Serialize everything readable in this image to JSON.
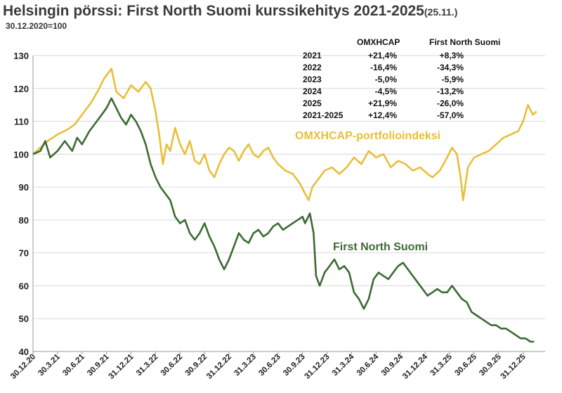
{
  "title": {
    "main": "Helsingin pörssi: First North Suomi kurssikehitys 2021-2025",
    "date": "(25.11.)",
    "subtitle": "30.12.2020=100"
  },
  "colors": {
    "omxhcap": "#E8BF38",
    "first_north": "#3C6A33",
    "grid": "#d9d9d9",
    "axis": "#999999"
  },
  "table": {
    "headers": [
      "OMXHCAP",
      "First North Suomi"
    ],
    "rows": [
      {
        "year": "2021",
        "omxhcap": "+21,4%",
        "fn": "+8,3%"
      },
      {
        "year": "2022",
        "omxhcap": "-16,4%",
        "fn": "-34,3%"
      },
      {
        "year": "2023",
        "omxhcap": "-5,0%",
        "fn": "-5,9%"
      },
      {
        "year": "2024",
        "omxhcap": "-4,5%",
        "fn": "-13,2%"
      },
      {
        "year": "2025",
        "omxhcap": "+21,9%",
        "fn": "-26,0%"
      },
      {
        "year": "2021-2025",
        "omxhcap": "+12,4%",
        "fn": "-57,0%"
      }
    ]
  },
  "chart_data": {
    "type": "line",
    "ylim": [
      40,
      130
    ],
    "yticks": [
      40,
      50,
      60,
      70,
      80,
      90,
      100,
      110,
      120,
      130
    ],
    "xlim": [
      0,
      20.9
    ],
    "xtick_labels": [
      "30.12.20",
      "30.3.21",
      "30.6.21",
      "30.9.21",
      "31.12.21",
      "31.3.22",
      "30.6.22",
      "30.9.22",
      "31.12.22",
      "31.3.23",
      "30.6.23",
      "30.9.23",
      "31.12.23",
      "31.3.24",
      "30.6.24",
      "30.9.24",
      "31.12.24",
      "31.3.25",
      "30.6.25",
      "30.9.25",
      "31.12.25"
    ],
    "x_unit": "quarters since 30.12.2020",
    "grid": "horizontal",
    "series": [
      {
        "name": "OMXHCAP-portfolioindeksi",
        "label_position": "upper-right",
        "points": [
          [
            0,
            100
          ],
          [
            0.3,
            102
          ],
          [
            0.6,
            104
          ],
          [
            1,
            106
          ],
          [
            1.4,
            107.5
          ],
          [
            1.7,
            109
          ],
          [
            2,
            112
          ],
          [
            2.4,
            116
          ],
          [
            2.7,
            120
          ],
          [
            2.9,
            123
          ],
          [
            3.2,
            126
          ],
          [
            3.4,
            119
          ],
          [
            3.7,
            117
          ],
          [
            4,
            121
          ],
          [
            4.3,
            119
          ],
          [
            4.6,
            122
          ],
          [
            4.8,
            120
          ],
          [
            5.0,
            113
          ],
          [
            5.15,
            106
          ],
          [
            5.3,
            97
          ],
          [
            5.45,
            103
          ],
          [
            5.6,
            101
          ],
          [
            5.8,
            108
          ],
          [
            6.0,
            103
          ],
          [
            6.2,
            100
          ],
          [
            6.4,
            104
          ],
          [
            6.6,
            98
          ],
          [
            6.8,
            97
          ],
          [
            7.0,
            100
          ],
          [
            7.2,
            95
          ],
          [
            7.4,
            93
          ],
          [
            7.6,
            97
          ],
          [
            7.8,
            100
          ],
          [
            8.0,
            102
          ],
          [
            8.2,
            101
          ],
          [
            8.4,
            98
          ],
          [
            8.6,
            101
          ],
          [
            8.8,
            103
          ],
          [
            9.0,
            100
          ],
          [
            9.2,
            99
          ],
          [
            9.4,
            101
          ],
          [
            9.6,
            102
          ],
          [
            9.8,
            99
          ],
          [
            10.0,
            97
          ],
          [
            10.3,
            95
          ],
          [
            10.6,
            94
          ],
          [
            10.9,
            91
          ],
          [
            11.1,
            88
          ],
          [
            11.25,
            86
          ],
          [
            11.4,
            90
          ],
          [
            11.6,
            92
          ],
          [
            11.9,
            95
          ],
          [
            12.2,
            96
          ],
          [
            12.5,
            94
          ],
          [
            12.8,
            96
          ],
          [
            13.1,
            99
          ],
          [
            13.4,
            97
          ],
          [
            13.7,
            101
          ],
          [
            14.0,
            99
          ],
          [
            14.3,
            100
          ],
          [
            14.6,
            96
          ],
          [
            14.9,
            98
          ],
          [
            15.2,
            97
          ],
          [
            15.5,
            95
          ],
          [
            15.8,
            96
          ],
          [
            16.1,
            94
          ],
          [
            16.3,
            93
          ],
          [
            16.6,
            95
          ],
          [
            16.9,
            99
          ],
          [
            17.1,
            102
          ],
          [
            17.3,
            100
          ],
          [
            17.45,
            93
          ],
          [
            17.55,
            86
          ],
          [
            17.75,
            96
          ],
          [
            18.0,
            99
          ],
          [
            18.3,
            100
          ],
          [
            18.6,
            101
          ],
          [
            18.9,
            103
          ],
          [
            19.2,
            105
          ],
          [
            19.5,
            106
          ],
          [
            19.8,
            107
          ],
          [
            20.0,
            110
          ],
          [
            20.2,
            115
          ],
          [
            20.4,
            112
          ],
          [
            20.55,
            113
          ]
        ]
      },
      {
        "name": "First North Suomi",
        "label_position": "center-right",
        "points": [
          [
            0,
            100
          ],
          [
            0.3,
            101
          ],
          [
            0.5,
            104
          ],
          [
            0.7,
            99
          ],
          [
            1.0,
            101
          ],
          [
            1.3,
            104
          ],
          [
            1.6,
            101
          ],
          [
            1.8,
            105
          ],
          [
            2.0,
            103
          ],
          [
            2.3,
            107
          ],
          [
            2.6,
            110
          ],
          [
            2.8,
            112
          ],
          [
            3.0,
            114
          ],
          [
            3.2,
            117
          ],
          [
            3.4,
            114
          ],
          [
            3.6,
            111
          ],
          [
            3.8,
            109
          ],
          [
            4.0,
            112
          ],
          [
            4.2,
            110
          ],
          [
            4.4,
            107
          ],
          [
            4.6,
            103
          ],
          [
            4.8,
            97
          ],
          [
            5.0,
            93
          ],
          [
            5.2,
            90
          ],
          [
            5.4,
            88
          ],
          [
            5.6,
            86
          ],
          [
            5.8,
            81
          ],
          [
            6.0,
            79
          ],
          [
            6.2,
            80
          ],
          [
            6.4,
            76
          ],
          [
            6.6,
            74
          ],
          [
            6.8,
            76
          ],
          [
            7.0,
            79
          ],
          [
            7.2,
            75
          ],
          [
            7.4,
            72
          ],
          [
            7.6,
            68
          ],
          [
            7.8,
            65
          ],
          [
            8.0,
            68
          ],
          [
            8.2,
            72
          ],
          [
            8.4,
            76
          ],
          [
            8.6,
            74
          ],
          [
            8.8,
            73
          ],
          [
            9.0,
            76
          ],
          [
            9.2,
            77
          ],
          [
            9.4,
            75
          ],
          [
            9.6,
            76
          ],
          [
            9.8,
            78
          ],
          [
            10.0,
            79
          ],
          [
            10.2,
            77
          ],
          [
            10.4,
            78
          ],
          [
            10.6,
            79
          ],
          [
            10.8,
            80
          ],
          [
            11.0,
            81
          ],
          [
            11.1,
            79
          ],
          [
            11.3,
            82
          ],
          [
            11.45,
            76
          ],
          [
            11.55,
            63
          ],
          [
            11.7,
            60
          ],
          [
            11.9,
            64
          ],
          [
            12.1,
            66
          ],
          [
            12.3,
            68
          ],
          [
            12.5,
            65
          ],
          [
            12.7,
            66
          ],
          [
            12.9,
            64
          ],
          [
            13.1,
            58
          ],
          [
            13.3,
            56
          ],
          [
            13.5,
            53
          ],
          [
            13.7,
            56
          ],
          [
            13.9,
            62
          ],
          [
            14.1,
            64
          ],
          [
            14.3,
            63
          ],
          [
            14.5,
            62
          ],
          [
            14.7,
            64
          ],
          [
            14.9,
            66
          ],
          [
            15.1,
            67
          ],
          [
            15.3,
            65
          ],
          [
            15.5,
            63
          ],
          [
            15.7,
            61
          ],
          [
            15.9,
            59
          ],
          [
            16.1,
            57
          ],
          [
            16.3,
            58
          ],
          [
            16.5,
            59
          ],
          [
            16.7,
            58
          ],
          [
            16.9,
            58
          ],
          [
            17.1,
            60
          ],
          [
            17.3,
            58
          ],
          [
            17.5,
            56
          ],
          [
            17.7,
            55
          ],
          [
            17.9,
            52
          ],
          [
            18.1,
            51
          ],
          [
            18.3,
            50
          ],
          [
            18.5,
            49
          ],
          [
            18.7,
            48
          ],
          [
            18.9,
            48
          ],
          [
            19.1,
            47
          ],
          [
            19.3,
            47
          ],
          [
            19.5,
            46
          ],
          [
            19.7,
            45
          ],
          [
            19.9,
            44
          ],
          [
            20.1,
            44
          ],
          [
            20.3,
            43
          ],
          [
            20.45,
            43
          ]
        ]
      }
    ]
  }
}
